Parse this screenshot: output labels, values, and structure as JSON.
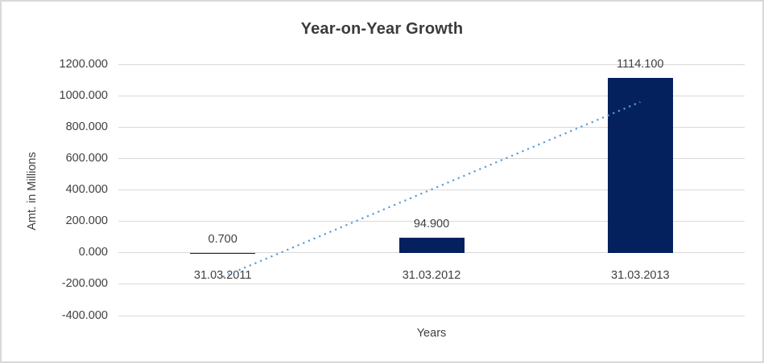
{
  "window": {
    "background": "#ffffff",
    "border_color": "#d9d9d9"
  },
  "chart_data": {
    "type": "bar",
    "title": "Year-on-Year Growth",
    "xlabel": "Years",
    "ylabel": "Amt. in Millions",
    "categories": [
      "31.03.2011",
      "31.03.2012",
      "31.03.2013"
    ],
    "series": [
      {
        "name": "Amt. in Millions",
        "values": [
          0.7,
          94.9,
          1114.1
        ],
        "data_labels": [
          "0.700",
          "94.900",
          "1114.100"
        ]
      }
    ],
    "ylim": [
      -400,
      1200
    ],
    "ytick_step": 200,
    "ytick_values": [
      1200,
      1000,
      800,
      600,
      400,
      200,
      0,
      -200,
      -400
    ],
    "ytick_labels": [
      "1200.000",
      "1000.000",
      "800.000",
      "600.000",
      "400.000",
      "200.000",
      "0.000",
      "-200.000",
      "-400.000"
    ],
    "grid": true,
    "legend": "none",
    "colors": {
      "bar": "#04215e",
      "gridline": "#d9d9d9",
      "trendline": "#5b9bd5",
      "text": "#404040",
      "title_text": "#3b3b3b"
    },
    "trendline": {
      "type": "linear",
      "style": "dotted",
      "color": "#5b9bd5",
      "start_category_index": 0,
      "end_category_index": 2,
      "start_value": -153.5,
      "end_value": 959.9
    }
  }
}
